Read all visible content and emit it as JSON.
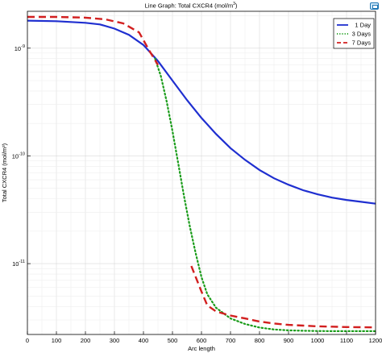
{
  "header": {
    "title": "Line Graph: Total CXCR4 (mol/m",
    "title_sup": "3",
    "title_end": ")"
  },
  "colors": {
    "series_1day": "#1f2fd0",
    "series_3days": "#1a9c1a",
    "series_7days": "#d21f1f",
    "grid": "#d9d9d9",
    "grid_minor": "#eeeeee",
    "button_accent": "#1f77b4"
  },
  "toolbar": {
    "icon": "image-icon"
  },
  "chart_data": {
    "type": "line",
    "title": "Line Graph: Total CXCR4 (mol/m³)",
    "xlabel": "Arc length",
    "ylabel": "Total CXCR4 (mol/m³)",
    "xlim": [
      0,
      1200
    ],
    "ylim": [
      2.2e-12,
      2.2e-09
    ],
    "yscale": "log",
    "grid": true,
    "legend_position": "top-right",
    "x_ticks": [
      "0",
      "100",
      "200",
      "300",
      "400",
      "500",
      "600",
      "700",
      "800",
      "900",
      "1000",
      "1100",
      "1200"
    ],
    "y_ticks": [
      {
        "value": 1e-09,
        "base": "10",
        "exp": "-9"
      },
      {
        "value": 1e-10,
        "base": "10",
        "exp": "-10"
      },
      {
        "value": 1e-11,
        "base": "10",
        "exp": "-11"
      }
    ],
    "series": [
      {
        "name": "1 Day",
        "style": "solid",
        "x": [
          0,
          100,
          200,
          250,
          300,
          350,
          400,
          450,
          500,
          550,
          600,
          650,
          700,
          750,
          800,
          850,
          900,
          950,
          1000,
          1050,
          1100,
          1150,
          1200
        ],
        "y": [
          1.8e-09,
          1.78e-09,
          1.72e-09,
          1.66e-09,
          1.52e-09,
          1.33e-09,
          1.07e-09,
          7.6e-10,
          5e-10,
          3.3e-10,
          2.25e-10,
          1.6e-10,
          1.18e-10,
          9.2e-11,
          7.4e-11,
          6.2e-11,
          5.4e-11,
          4.8e-11,
          4.4e-11,
          4.1e-11,
          3.9e-11,
          3.75e-11,
          3.6e-11
        ]
      },
      {
        "name": "3 Days",
        "style": "dotted",
        "x": [
          440,
          460,
          480,
          500,
          520,
          540,
          560,
          580,
          600,
          620,
          650,
          700,
          750,
          800,
          850,
          900,
          950,
          1000,
          1050,
          1100,
          1150,
          1200
        ],
        "y": [
          8e-10,
          5.5e-10,
          3.2e-10,
          1.7e-10,
          8.5e-11,
          4.2e-11,
          2.2e-11,
          1.25e-11,
          7.5e-12,
          5.2e-12,
          3.9e-12,
          3.1e-12,
          2.75e-12,
          2.55e-12,
          2.45e-12,
          2.4e-12,
          2.38e-12,
          2.37e-12,
          2.36e-12,
          2.36e-12,
          2.36e-12,
          2.36e-12
        ]
      },
      {
        "name": "7 Days",
        "style": "dashed",
        "segments": [
          {
            "x": [
              0,
              100,
              200,
              270,
              330,
              385,
              420,
              450
            ],
            "y": [
              1.95e-09,
              1.95e-09,
              1.92e-09,
              1.85e-09,
              1.7e-09,
              1.4e-09,
              9.5e-10,
              7e-10
            ]
          },
          {
            "x": [
              565,
              600,
              620,
              650,
              700,
              750,
              800,
              850,
              900,
              950,
              1000,
              1050,
              1100,
              1150,
              1200
            ],
            "y": [
              9.5e-12,
              5.5e-12,
              4.1e-12,
              3.6e-12,
              3.3e-12,
              3.1e-12,
              2.9e-12,
              2.78e-12,
              2.7e-12,
              2.66e-12,
              2.62e-12,
              2.6e-12,
              2.58e-12,
              2.57e-12,
              2.56e-12
            ]
          }
        ]
      }
    ]
  }
}
